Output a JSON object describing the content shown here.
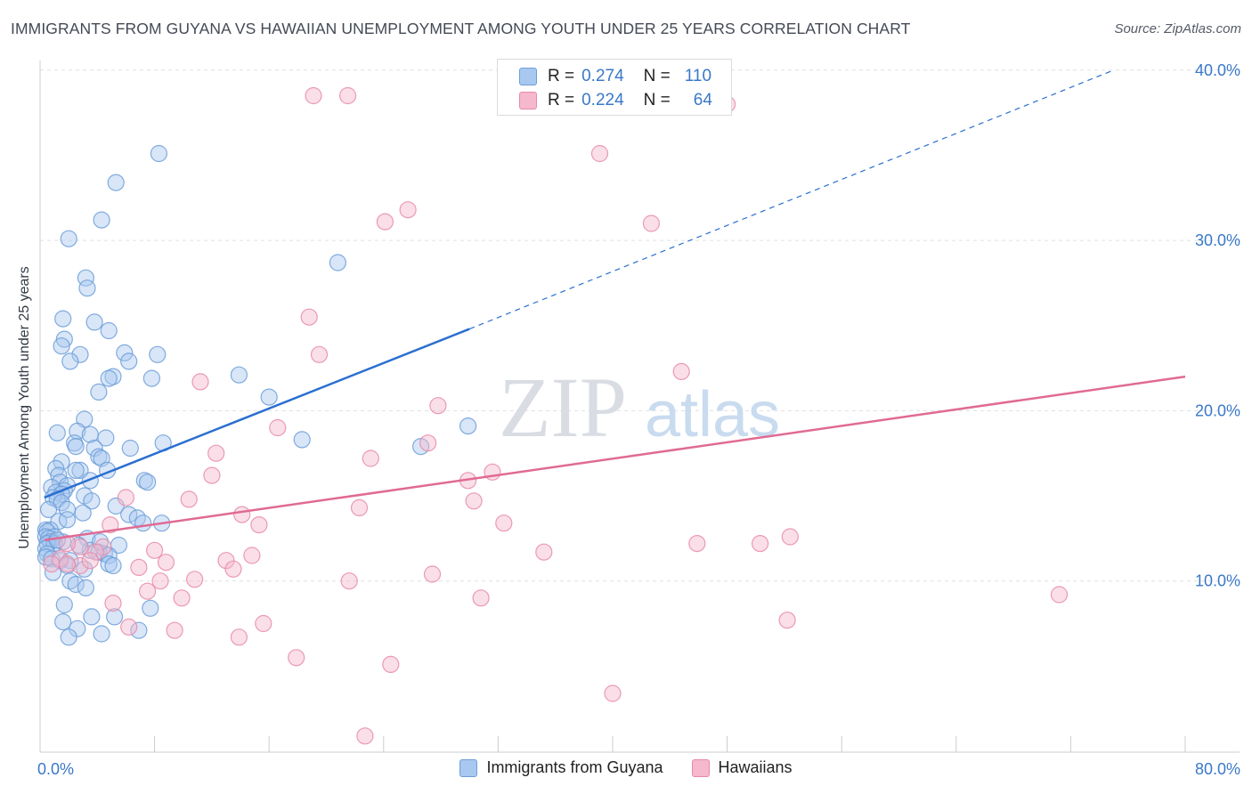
{
  "title": "IMMIGRANTS FROM GUYANA VS HAWAIIAN UNEMPLOYMENT AMONG YOUTH UNDER 25 YEARS CORRELATION CHART",
  "source": "Source: ZipAtlas.com",
  "watermark": {
    "zip": "ZIP",
    "atlas": "atlas"
  },
  "legend": {
    "series1": {
      "r_label": "R =",
      "r_value": "0.274",
      "n_label": "N =",
      "n_value": "110"
    },
    "series2": {
      "r_label": "R =",
      "r_value": "0.224",
      "n_label": "N =",
      "n_value": "64"
    }
  },
  "bottom_legend": {
    "series1": "Immigrants from Guyana",
    "series2": "Hawaiians"
  },
  "colors": {
    "blue_fill": "#a9c8f0",
    "blue_stroke": "#6c9ed8",
    "blue_line": "#2a6fd0",
    "pink_fill": "#f5b8cc",
    "pink_stroke": "#e88aaa",
    "pink_line": "#e06a93",
    "tick_text": "#3a78c9",
    "grid": "#dde0e5"
  },
  "chart_data": {
    "type": "scatter",
    "title": "IMMIGRANTS FROM GUYANA VS HAWAIIAN UNEMPLOYMENT AMONG YOUTH UNDER 25 YEARS CORRELATION CHART",
    "xlabel": "",
    "ylabel": "Unemployment Among Youth under 25 years",
    "xlim": [
      0,
      80
    ],
    "ylim": [
      0,
      41
    ],
    "x_tick_labels": [
      "0.0%",
      "80.0%"
    ],
    "y_ticks": [
      10,
      20,
      30,
      40
    ],
    "y_tick_labels": [
      "10.0%",
      "20.0%",
      "30.0%",
      "40.0%"
    ],
    "series": [
      {
        "name": "Immigrants from Guyana",
        "R": 0.274,
        "N": 110,
        "trend": {
          "x0": 0.3,
          "y0": 14.9,
          "x1": 30.0,
          "y1": 24.8,
          "dash_to_x": 75.0,
          "dash_to_y": 40.0
        },
        "points": [
          [
            8.3,
            35.1
          ],
          [
            5.3,
            33.4
          ],
          [
            4.3,
            31.2
          ],
          [
            2.0,
            30.1
          ],
          [
            20.8,
            28.7
          ],
          [
            3.2,
            27.8
          ],
          [
            3.3,
            27.2
          ],
          [
            1.6,
            25.4
          ],
          [
            3.8,
            25.2
          ],
          [
            4.8,
            24.7
          ],
          [
            1.7,
            24.2
          ],
          [
            1.5,
            23.8
          ],
          [
            5.9,
            23.4
          ],
          [
            8.2,
            23.3
          ],
          [
            2.8,
            23.3
          ],
          [
            6.2,
            22.9
          ],
          [
            2.1,
            22.9
          ],
          [
            5.1,
            22.0
          ],
          [
            4.8,
            21.9
          ],
          [
            7.8,
            21.9
          ],
          [
            13.9,
            22.1
          ],
          [
            4.1,
            21.1
          ],
          [
            16.0,
            20.8
          ],
          [
            3.1,
            19.5
          ],
          [
            29.9,
            19.1
          ],
          [
            2.6,
            18.8
          ],
          [
            1.2,
            18.7
          ],
          [
            3.5,
            18.6
          ],
          [
            4.6,
            18.4
          ],
          [
            18.3,
            18.3
          ],
          [
            8.6,
            18.1
          ],
          [
            2.4,
            18.1
          ],
          [
            2.5,
            17.9
          ],
          [
            3.8,
            17.8
          ],
          [
            6.3,
            17.8
          ],
          [
            26.6,
            17.9
          ],
          [
            4.1,
            17.3
          ],
          [
            4.3,
            17.2
          ],
          [
            1.5,
            17.0
          ],
          [
            2.8,
            16.5
          ],
          [
            2.5,
            16.5
          ],
          [
            4.7,
            16.5
          ],
          [
            1.1,
            16.6
          ],
          [
            1.3,
            16.2
          ],
          [
            7.3,
            15.9
          ],
          [
            3.5,
            15.9
          ],
          [
            1.4,
            15.8
          ],
          [
            7.5,
            15.8
          ],
          [
            1.9,
            15.6
          ],
          [
            1.7,
            15.3
          ],
          [
            0.8,
            15.5
          ],
          [
            1.1,
            15.2
          ],
          [
            1.5,
            15.1
          ],
          [
            3.1,
            15.0
          ],
          [
            0.9,
            14.9
          ],
          [
            1.2,
            14.8
          ],
          [
            3.6,
            14.7
          ],
          [
            1.5,
            14.6
          ],
          [
            5.3,
            14.4
          ],
          [
            1.9,
            14.2
          ],
          [
            0.6,
            14.2
          ],
          [
            6.2,
            13.9
          ],
          [
            6.8,
            13.7
          ],
          [
            1.3,
            13.5
          ],
          [
            1.9,
            13.6
          ],
          [
            7.2,
            13.4
          ],
          [
            8.5,
            13.4
          ],
          [
            0.4,
            13.0
          ],
          [
            0.7,
            13.0
          ],
          [
            0.5,
            12.9
          ],
          [
            0.4,
            12.6
          ],
          [
            3.3,
            12.5
          ],
          [
            1.0,
            12.6
          ],
          [
            0.6,
            12.5
          ],
          [
            0.7,
            12.3
          ],
          [
            0.5,
            12.2
          ],
          [
            1.6,
            12.3
          ],
          [
            1.0,
            12.2
          ],
          [
            5.5,
            12.1
          ],
          [
            0.4,
            11.9
          ],
          [
            3.5,
            11.8
          ],
          [
            4.5,
            11.6
          ],
          [
            4.1,
            11.7
          ],
          [
            0.5,
            11.6
          ],
          [
            4.8,
            11.5
          ],
          [
            0.4,
            11.4
          ],
          [
            0.8,
            11.3
          ],
          [
            1.4,
            11.2
          ],
          [
            2.1,
            11.2
          ],
          [
            4.8,
            11.0
          ],
          [
            5.1,
            10.9
          ],
          [
            1.9,
            10.9
          ],
          [
            3.1,
            10.7
          ],
          [
            0.9,
            10.5
          ],
          [
            2.1,
            10.0
          ],
          [
            2.5,
            9.8
          ],
          [
            3.2,
            9.6
          ],
          [
            1.7,
            8.6
          ],
          [
            7.7,
            8.4
          ],
          [
            3.6,
            7.9
          ],
          [
            5.2,
            7.9
          ],
          [
            1.6,
            7.6
          ],
          [
            2.6,
            7.2
          ],
          [
            4.3,
            6.9
          ],
          [
            6.9,
            7.1
          ],
          [
            2.0,
            6.7
          ],
          [
            4.2,
            12.3
          ],
          [
            2.7,
            12.1
          ],
          [
            1.2,
            12.4
          ],
          [
            3.0,
            14.0
          ]
        ]
      },
      {
        "name": "Hawaiians",
        "R": 0.224,
        "N": 64,
        "trend": {
          "x0": 0.3,
          "y0": 12.4,
          "x1": 80.0,
          "y1": 22.0
        },
        "points": [
          [
            19.1,
            38.5
          ],
          [
            21.5,
            38.5
          ],
          [
            48.0,
            38.0
          ],
          [
            39.1,
            35.1
          ],
          [
            25.7,
            31.8
          ],
          [
            24.1,
            31.1
          ],
          [
            42.7,
            31.0
          ],
          [
            18.8,
            25.5
          ],
          [
            19.5,
            23.3
          ],
          [
            44.8,
            22.3
          ],
          [
            11.2,
            21.7
          ],
          [
            27.8,
            20.3
          ],
          [
            16.6,
            19.0
          ],
          [
            27.1,
            18.1
          ],
          [
            12.3,
            17.5
          ],
          [
            23.1,
            17.2
          ],
          [
            31.6,
            16.4
          ],
          [
            12.0,
            16.2
          ],
          [
            29.9,
            15.9
          ],
          [
            6.0,
            14.9
          ],
          [
            10.4,
            14.8
          ],
          [
            30.3,
            14.7
          ],
          [
            22.3,
            14.3
          ],
          [
            14.1,
            13.9
          ],
          [
            32.4,
            13.4
          ],
          [
            15.3,
            13.3
          ],
          [
            4.9,
            13.3
          ],
          [
            52.4,
            12.6
          ],
          [
            45.9,
            12.2
          ],
          [
            50.3,
            12.2
          ],
          [
            2.8,
            12.0
          ],
          [
            4.4,
            12.0
          ],
          [
            8.0,
            11.8
          ],
          [
            3.9,
            11.7
          ],
          [
            35.2,
            11.7
          ],
          [
            14.8,
            11.5
          ],
          [
            13.0,
            11.2
          ],
          [
            1.4,
            11.3
          ],
          [
            8.8,
            11.1
          ],
          [
            0.8,
            11.0
          ],
          [
            2.8,
            10.9
          ],
          [
            1.9,
            11.0
          ],
          [
            6.9,
            10.8
          ],
          [
            13.5,
            10.7
          ],
          [
            27.4,
            10.4
          ],
          [
            10.8,
            10.1
          ],
          [
            21.6,
            10.0
          ],
          [
            8.4,
            10.0
          ],
          [
            7.5,
            9.4
          ],
          [
            9.9,
            9.0
          ],
          [
            30.8,
            9.0
          ],
          [
            71.2,
            9.2
          ],
          [
            5.1,
            8.7
          ],
          [
            52.2,
            7.7
          ],
          [
            15.6,
            7.5
          ],
          [
            6.2,
            7.3
          ],
          [
            9.4,
            7.1
          ],
          [
            13.9,
            6.7
          ],
          [
            17.9,
            5.5
          ],
          [
            24.5,
            5.1
          ],
          [
            40.0,
            3.4
          ],
          [
            22.7,
            0.9
          ],
          [
            1.9,
            12.2
          ],
          [
            3.5,
            11.2
          ]
        ]
      }
    ]
  }
}
